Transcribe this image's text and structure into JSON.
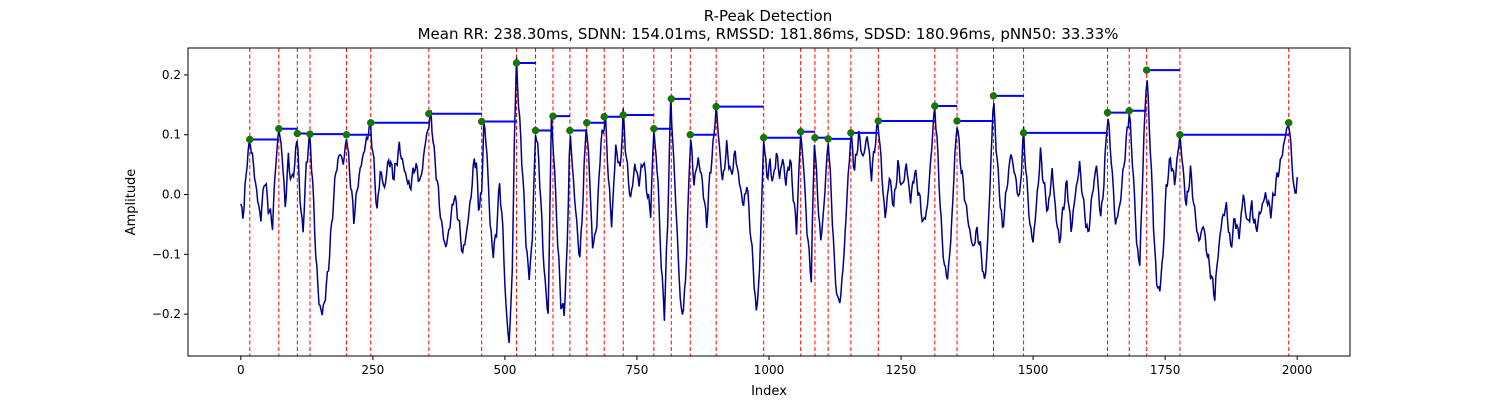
{
  "chart_data": {
    "type": "line",
    "title": "R-Peak Detection",
    "subtitle": "Mean RR: 238.30ms, SDNN: 154.01ms, RMSSD: 181.86ms, SDSD: 180.96ms, pNN50: 33.33%",
    "xlabel": "Index",
    "ylabel": "Amplitude",
    "xlim": [
      -100,
      2100
    ],
    "ylim": [
      -0.27,
      0.245
    ],
    "xticks": [
      0,
      250,
      500,
      750,
      1000,
      1250,
      1500,
      1750,
      2000
    ],
    "xtick_labels": [
      "0",
      "250",
      "500",
      "750",
      "1000",
      "1250",
      "1500",
      "1750",
      "2000"
    ],
    "yticks": [
      -0.2,
      -0.1,
      0.0,
      0.1,
      0.2
    ],
    "ytick_labels": [
      "−0.2",
      "−0.1",
      "0.0",
      "0.1",
      "0.2"
    ],
    "grid": false,
    "colors": {
      "signal": "#00008b",
      "peak_line": "#ff0000",
      "peak_marker": "#008000",
      "rr_interval": "#0000ff"
    },
    "signal_keypoints": [
      [
        0,
        -0.02
      ],
      [
        5,
        -0.035
      ],
      [
        12,
        0.06
      ],
      [
        18,
        0.09
      ],
      [
        25,
        0.04
      ],
      [
        32,
        -0.01
      ],
      [
        38,
        -0.04
      ],
      [
        45,
        0.03
      ],
      [
        52,
        -0.02
      ],
      [
        60,
        -0.05
      ],
      [
        66,
        0.05
      ],
      [
        72,
        0.11
      ],
      [
        78,
        0.07
      ],
      [
        84,
        -0.02
      ],
      [
        90,
        0.06
      ],
      [
        96,
        0.02
      ],
      [
        102,
        0.05
      ],
      [
        107,
        0.102
      ],
      [
        112,
        -0.01
      ],
      [
        118,
        -0.06
      ],
      [
        124,
        0.05
      ],
      [
        131,
        0.101
      ],
      [
        137,
        0.0
      ],
      [
        142,
        -0.1
      ],
      [
        148,
        -0.18
      ],
      [
        154,
        -0.2
      ],
      [
        160,
        -0.17
      ],
      [
        166,
        -0.12
      ],
      [
        172,
        -0.05
      ],
      [
        180,
        0.04
      ],
      [
        188,
        0.07
      ],
      [
        195,
        0.05
      ],
      [
        200,
        0.1
      ],
      [
        207,
        0.03
      ],
      [
        214,
        -0.04
      ],
      [
        222,
        0.02
      ],
      [
        230,
        0.06
      ],
      [
        238,
        0.09
      ],
      [
        245,
        0.12
      ],
      [
        252,
        0.05
      ],
      [
        258,
        -0.03
      ],
      [
        264,
        0.04
      ],
      [
        272,
        0.01
      ],
      [
        280,
        0.06
      ],
      [
        290,
        0.03
      ],
      [
        300,
        0.08
      ],
      [
        310,
        0.04
      ],
      [
        320,
        0.01
      ],
      [
        330,
        0.05
      ],
      [
        340,
        0.02
      ],
      [
        350,
        0.09
      ],
      [
        360,
        0.135
      ],
      [
        366,
        0.07
      ],
      [
        372,
        0.02
      ],
      [
        380,
        -0.05
      ],
      [
        388,
        -0.09
      ],
      [
        396,
        -0.05
      ],
      [
        404,
        0.0
      ],
      [
        412,
        -0.04
      ],
      [
        420,
        -0.1
      ],
      [
        428,
        -0.06
      ],
      [
        436,
        0.0
      ],
      [
        442,
        0.06
      ],
      [
        446,
        0.05
      ],
      [
        450,
        -0.02
      ],
      [
        456,
        0.0
      ],
      [
        460,
        0.122
      ],
      [
        466,
        0.07
      ],
      [
        472,
        -0.05
      ],
      [
        478,
        -0.1
      ],
      [
        484,
        -0.06
      ],
      [
        490,
        0.02
      ],
      [
        496,
        -0.06
      ],
      [
        502,
        -0.19
      ],
      [
        508,
        -0.25
      ],
      [
        514,
        -0.13
      ],
      [
        518,
        0.1
      ],
      [
        522,
        0.22
      ],
      [
        528,
        0.12
      ],
      [
        534,
        0.03
      ],
      [
        540,
        -0.08
      ],
      [
        546,
        -0.14
      ],
      [
        552,
        -0.07
      ],
      [
        558,
        0.107
      ],
      [
        564,
        0.06
      ],
      [
        570,
        -0.05
      ],
      [
        576,
        -0.15
      ],
      [
        582,
        -0.2
      ],
      [
        588,
        0.131
      ],
      [
        594,
        0.04
      ],
      [
        600,
        -0.08
      ],
      [
        606,
        -0.18
      ],
      [
        612,
        -0.2
      ],
      [
        618,
        -0.09
      ],
      [
        623,
        0.107
      ],
      [
        630,
        0.02
      ],
      [
        636,
        -0.05
      ],
      [
        642,
        -0.11
      ],
      [
        648,
        0.0
      ],
      [
        654,
        0.12
      ],
      [
        660,
        0.04
      ],
      [
        666,
        -0.09
      ],
      [
        674,
        -0.05
      ],
      [
        681,
        0.08
      ],
      [
        690,
        0.13
      ],
      [
        696,
        0.03
      ],
      [
        702,
        -0.05
      ],
      [
        710,
        0.08
      ],
      [
        718,
        0.04
      ],
      [
        724,
        0.133
      ],
      [
        730,
        0.06
      ],
      [
        738,
        -0.01
      ],
      [
        746,
        0.05
      ],
      [
        754,
        0.02
      ],
      [
        762,
        0.06
      ],
      [
        770,
        0.0
      ],
      [
        776,
        -0.03
      ],
      [
        782,
        0.11
      ],
      [
        790,
        0.02
      ],
      [
        796,
        -0.12
      ],
      [
        802,
        -0.2
      ],
      [
        808,
        -0.05
      ],
      [
        814,
        0.16
      ],
      [
        820,
        0.05
      ],
      [
        826,
        -0.06
      ],
      [
        832,
        -0.18
      ],
      [
        838,
        -0.2
      ],
      [
        844,
        -0.1
      ],
      [
        851,
        0.1
      ],
      [
        858,
        0.02
      ],
      [
        866,
        0.06
      ],
      [
        874,
        0.02
      ],
      [
        882,
        -0.05
      ],
      [
        888,
        0.03
      ],
      [
        894,
        0.08
      ],
      [
        900,
        0.147
      ],
      [
        906,
        0.08
      ],
      [
        912,
        0.02
      ],
      [
        920,
        0.08
      ],
      [
        928,
        0.03
      ],
      [
        936,
        0.07
      ],
      [
        944,
        0.02
      ],
      [
        952,
        -0.02
      ],
      [
        958,
        0.02
      ],
      [
        964,
        -0.05
      ],
      [
        970,
        -0.12
      ],
      [
        976,
        -0.2
      ],
      [
        982,
        -0.13
      ],
      [
        990,
        0.095
      ],
      [
        996,
        0.03
      ],
      [
        1002,
        0.05
      ],
      [
        1008,
        0.02
      ],
      [
        1014,
        0.07
      ],
      [
        1020,
        0.03
      ],
      [
        1026,
        0.06
      ],
      [
        1032,
        0.02
      ],
      [
        1040,
        0.06
      ],
      [
        1046,
        0.0
      ],
      [
        1052,
        -0.06
      ],
      [
        1060,
        0.105
      ],
      [
        1066,
        0.04
      ],
      [
        1072,
        -0.06
      ],
      [
        1080,
        -0.14
      ],
      [
        1086,
        0.095
      ],
      [
        1092,
        0.0
      ],
      [
        1098,
        -0.08
      ],
      [
        1104,
        -0.02
      ],
      [
        1112,
        0.093
      ],
      [
        1118,
        0.0
      ],
      [
        1124,
        -0.12
      ],
      [
        1130,
        -0.18
      ],
      [
        1136,
        -0.17
      ],
      [
        1142,
        -0.1
      ],
      [
        1148,
        0.0
      ],
      [
        1155,
        0.103
      ],
      [
        1162,
        0.04
      ],
      [
        1170,
        0.1
      ],
      [
        1178,
        0.06
      ],
      [
        1186,
        0.1
      ],
      [
        1194,
        0.03
      ],
      [
        1200,
        0.08
      ],
      [
        1207,
        0.123
      ],
      [
        1214,
        0.03
      ],
      [
        1220,
        -0.04
      ],
      [
        1228,
        0.03
      ],
      [
        1236,
        -0.02
      ],
      [
        1244,
        0.05
      ],
      [
        1252,
        0.01
      ],
      [
        1260,
        0.05
      ],
      [
        1268,
        -0.01
      ],
      [
        1276,
        0.04
      ],
      [
        1284,
        0.0
      ],
      [
        1292,
        -0.05
      ],
      [
        1300,
        -0.02
      ],
      [
        1308,
        0.08
      ],
      [
        1314,
        0.148
      ],
      [
        1320,
        0.06
      ],
      [
        1326,
        -0.05
      ],
      [
        1332,
        -0.12
      ],
      [
        1338,
        -0.14
      ],
      [
        1344,
        -0.08
      ],
      [
        1350,
        0.03
      ],
      [
        1356,
        0.123
      ],
      [
        1362,
        0.06
      ],
      [
        1370,
        0.0
      ],
      [
        1378,
        -0.05
      ],
      [
        1386,
        -0.09
      ],
      [
        1394,
        -0.06
      ],
      [
        1402,
        -0.1
      ],
      [
        1408,
        -0.15
      ],
      [
        1414,
        -0.08
      ],
      [
        1420,
        0.05
      ],
      [
        1425,
        0.165
      ],
      [
        1430,
        0.08
      ],
      [
        1436,
        0.01
      ],
      [
        1442,
        -0.06
      ],
      [
        1450,
        0.01
      ],
      [
        1458,
        0.07
      ],
      [
        1466,
        0.03
      ],
      [
        1474,
        -0.01
      ],
      [
        1482,
        0.103
      ],
      [
        1488,
        0.02
      ],
      [
        1494,
        -0.05
      ],
      [
        1500,
        -0.08
      ],
      [
        1508,
        0.0
      ],
      [
        1514,
        0.07
      ],
      [
        1520,
        0.02
      ],
      [
        1528,
        -0.03
      ],
      [
        1536,
        0.04
      ],
      [
        1544,
        -0.04
      ],
      [
        1550,
        -0.08
      ],
      [
        1556,
        -0.03
      ],
      [
        1564,
        0.02
      ],
      [
        1572,
        -0.06
      ],
      [
        1580,
        0.0
      ],
      [
        1588,
        0.05
      ],
      [
        1596,
        -0.02
      ],
      [
        1604,
        -0.07
      ],
      [
        1612,
        0.0
      ],
      [
        1620,
        0.05
      ],
      [
        1628,
        -0.04
      ],
      [
        1634,
        0.02
      ],
      [
        1641,
        0.137
      ],
      [
        1648,
        0.06
      ],
      [
        1656,
        -0.05
      ],
      [
        1664,
        -0.02
      ],
      [
        1672,
        0.05
      ],
      [
        1682,
        0.14
      ],
      [
        1690,
        0.03
      ],
      [
        1696,
        -0.08
      ],
      [
        1702,
        -0.12
      ],
      [
        1708,
        0.05
      ],
      [
        1715,
        0.208
      ],
      [
        1722,
        0.08
      ],
      [
        1728,
        -0.05
      ],
      [
        1734,
        -0.15
      ],
      [
        1740,
        -0.16
      ],
      [
        1746,
        -0.1
      ],
      [
        1752,
        0.01
      ],
      [
        1760,
        0.06
      ],
      [
        1768,
        0.02
      ],
      [
        1778,
        0.1
      ],
      [
        1784,
        0.04
      ],
      [
        1790,
        -0.02
      ],
      [
        1798,
        0.04
      ],
      [
        1806,
        -0.03
      ],
      [
        1814,
        -0.08
      ],
      [
        1822,
        -0.05
      ],
      [
        1830,
        -0.1
      ],
      [
        1838,
        -0.14
      ],
      [
        1844,
        -0.17
      ],
      [
        1850,
        -0.1
      ],
      [
        1858,
        -0.04
      ],
      [
        1866,
        -0.02
      ],
      [
        1874,
        -0.09
      ],
      [
        1882,
        -0.04
      ],
      [
        1890,
        -0.07
      ],
      [
        1898,
        0.0
      ],
      [
        1906,
        -0.05
      ],
      [
        1914,
        -0.02
      ],
      [
        1922,
        -0.06
      ],
      [
        1930,
        -0.03
      ],
      [
        1940,
        0.0
      ],
      [
        1950,
        -0.03
      ],
      [
        1960,
        0.02
      ],
      [
        1970,
        0.06
      ],
      [
        1978,
        0.1
      ],
      [
        1984,
        0.12
      ],
      [
        1990,
        0.06
      ],
      [
        1995,
        -0.01
      ],
      [
        2000,
        0.03
      ]
    ],
    "r_peaks": [
      {
        "index": 17,
        "amplitude": 0.092
      },
      {
        "index": 72,
        "amplitude": 0.11
      },
      {
        "index": 107,
        "amplitude": 0.102
      },
      {
        "index": 131,
        "amplitude": 0.101
      },
      {
        "index": 200,
        "amplitude": 0.1
      },
      {
        "index": 246,
        "amplitude": 0.12
      },
      {
        "index": 356,
        "amplitude": 0.135
      },
      {
        "index": 456,
        "amplitude": 0.122
      },
      {
        "index": 522,
        "amplitude": 0.22
      },
      {
        "index": 558,
        "amplitude": 0.107
      },
      {
        "index": 591,
        "amplitude": 0.131
      },
      {
        "index": 623,
        "amplitude": 0.107
      },
      {
        "index": 655,
        "amplitude": 0.12
      },
      {
        "index": 688,
        "amplitude": 0.13
      },
      {
        "index": 724,
        "amplitude": 0.133
      },
      {
        "index": 782,
        "amplitude": 0.11
      },
      {
        "index": 815,
        "amplitude": 0.16
      },
      {
        "index": 851,
        "amplitude": 0.1
      },
      {
        "index": 900,
        "amplitude": 0.147
      },
      {
        "index": 990,
        "amplitude": 0.095
      },
      {
        "index": 1060,
        "amplitude": 0.105
      },
      {
        "index": 1087,
        "amplitude": 0.095
      },
      {
        "index": 1112,
        "amplitude": 0.093
      },
      {
        "index": 1155,
        "amplitude": 0.103
      },
      {
        "index": 1207,
        "amplitude": 0.123
      },
      {
        "index": 1314,
        "amplitude": 0.148
      },
      {
        "index": 1356,
        "amplitude": 0.123
      },
      {
        "index": 1425,
        "amplitude": 0.165
      },
      {
        "index": 1482,
        "amplitude": 0.103
      },
      {
        "index": 1641,
        "amplitude": 0.137
      },
      {
        "index": 1682,
        "amplitude": 0.14
      },
      {
        "index": 1715,
        "amplitude": 0.208
      },
      {
        "index": 1778,
        "amplitude": 0.1
      },
      {
        "index": 1984,
        "amplitude": 0.12
      }
    ],
    "rr_intervals": [
      {
        "start": 17,
        "end": 72,
        "amplitude": 0.092
      },
      {
        "start": 72,
        "end": 107,
        "amplitude": 0.11
      },
      {
        "start": 107,
        "end": 131,
        "amplitude": 0.102
      },
      {
        "start": 131,
        "end": 200,
        "amplitude": 0.101
      },
      {
        "start": 200,
        "end": 246,
        "amplitude": 0.1
      },
      {
        "start": 246,
        "end": 356,
        "amplitude": 0.12
      },
      {
        "start": 356,
        "end": 456,
        "amplitude": 0.135
      },
      {
        "start": 456,
        "end": 522,
        "amplitude": 0.122
      },
      {
        "start": 522,
        "end": 558,
        "amplitude": 0.22
      },
      {
        "start": 558,
        "end": 591,
        "amplitude": 0.107
      },
      {
        "start": 591,
        "end": 623,
        "amplitude": 0.131
      },
      {
        "start": 623,
        "end": 655,
        "amplitude": 0.107
      },
      {
        "start": 655,
        "end": 688,
        "amplitude": 0.12
      },
      {
        "start": 688,
        "end": 724,
        "amplitude": 0.13
      },
      {
        "start": 724,
        "end": 782,
        "amplitude": 0.133
      },
      {
        "start": 782,
        "end": 815,
        "amplitude": 0.11
      },
      {
        "start": 815,
        "end": 851,
        "amplitude": 0.16
      },
      {
        "start": 851,
        "end": 900,
        "amplitude": 0.1
      },
      {
        "start": 900,
        "end": 990,
        "amplitude": 0.147
      },
      {
        "start": 990,
        "end": 1060,
        "amplitude": 0.095
      },
      {
        "start": 1060,
        "end": 1087,
        "amplitude": 0.105
      },
      {
        "start": 1087,
        "end": 1112,
        "amplitude": 0.095
      },
      {
        "start": 1112,
        "end": 1155,
        "amplitude": 0.093
      },
      {
        "start": 1155,
        "end": 1207,
        "amplitude": 0.103
      },
      {
        "start": 1207,
        "end": 1314,
        "amplitude": 0.123
      },
      {
        "start": 1314,
        "end": 1356,
        "amplitude": 0.148
      },
      {
        "start": 1356,
        "end": 1425,
        "amplitude": 0.123
      },
      {
        "start": 1425,
        "end": 1482,
        "amplitude": 0.165
      },
      {
        "start": 1482,
        "end": 1641,
        "amplitude": 0.103
      },
      {
        "start": 1641,
        "end": 1682,
        "amplitude": 0.137
      },
      {
        "start": 1682,
        "end": 1715,
        "amplitude": 0.14
      },
      {
        "start": 1715,
        "end": 1778,
        "amplitude": 0.208
      },
      {
        "start": 1778,
        "end": 1984,
        "amplitude": 0.1
      }
    ]
  }
}
